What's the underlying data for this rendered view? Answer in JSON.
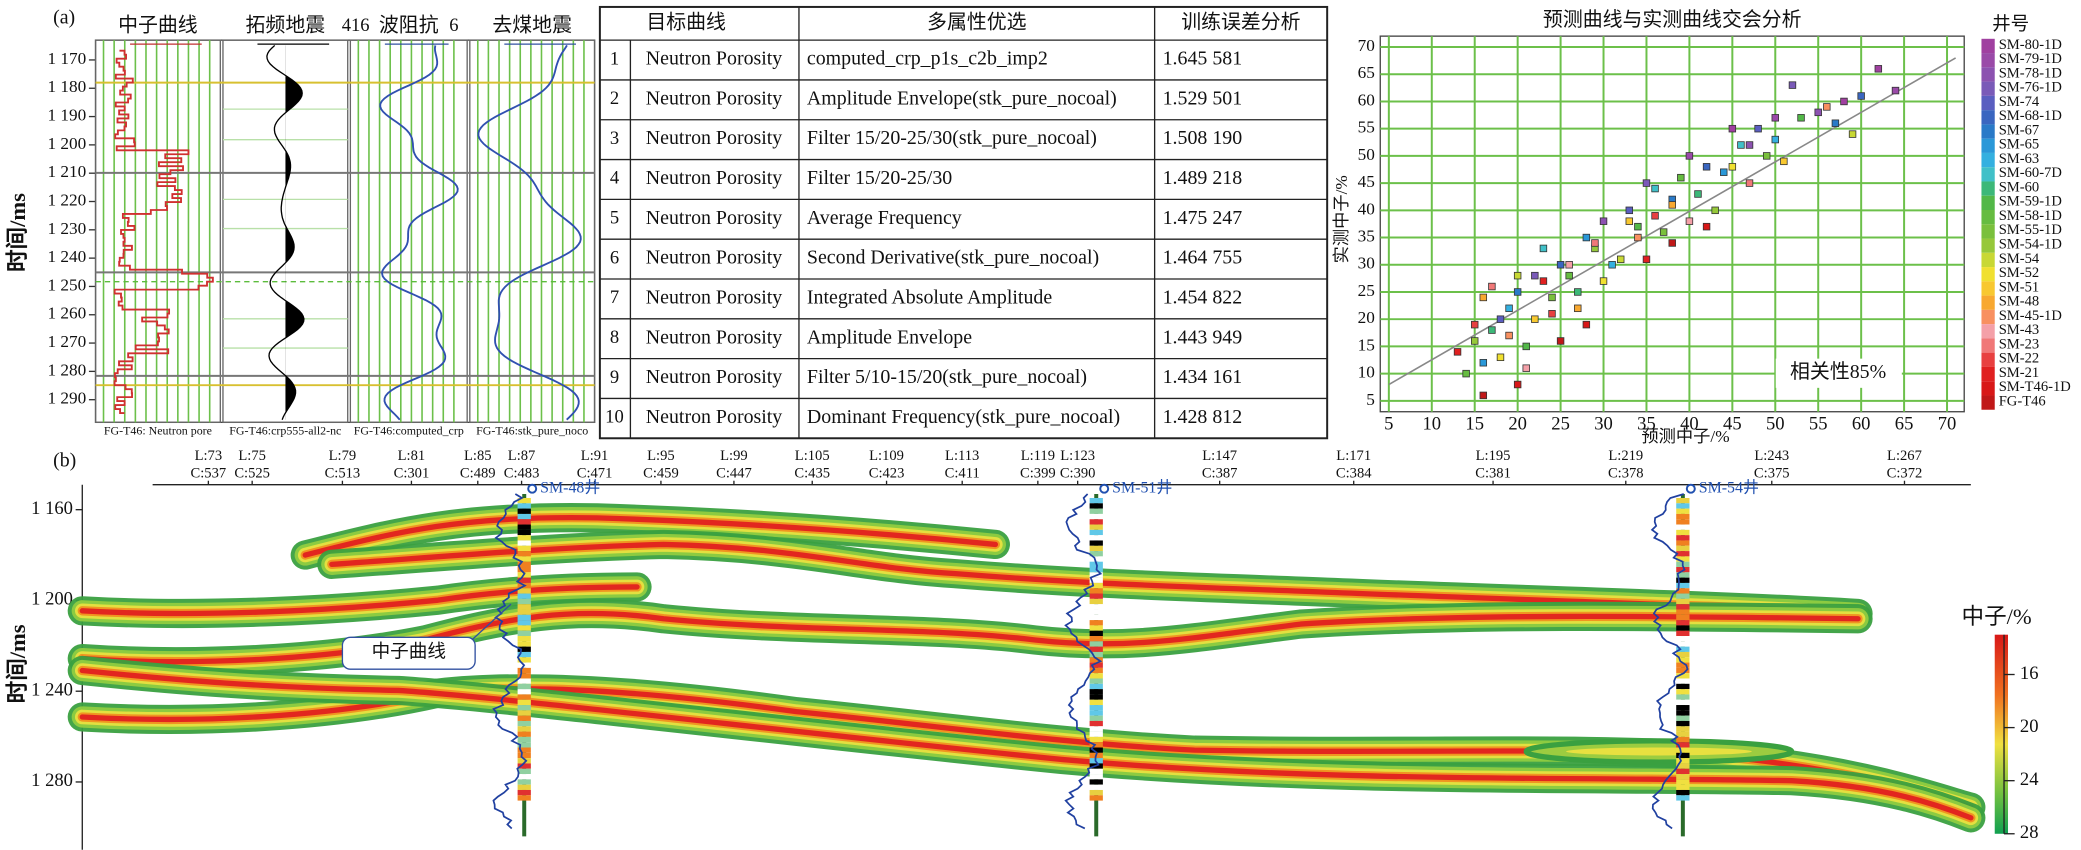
{
  "panel_a": {
    "label": "(a)",
    "logs": {
      "y_label": "时间/ms",
      "ylim": [
        1163,
        1298
      ],
      "yticks": [
        {
          "value": 1170,
          "label": "1 170"
        },
        {
          "value": 1180,
          "label": "1 180"
        },
        {
          "value": 1190,
          "label": "1 190"
        },
        {
          "value": 1200,
          "label": "1 200"
        },
        {
          "value": 1210,
          "label": "1 210"
        },
        {
          "value": 1220,
          "label": "1 220"
        },
        {
          "value": 1230,
          "label": "1 230"
        },
        {
          "value": 1240,
          "label": "1 240"
        },
        {
          "value": 1250,
          "label": "1 250"
        },
        {
          "value": 1260,
          "label": "1 260"
        },
        {
          "value": 1270,
          "label": "1 270"
        },
        {
          "value": 1280,
          "label": "1 280"
        },
        {
          "value": 1290,
          "label": "1 290"
        }
      ],
      "tracks": [
        {
          "title": "中子曲线",
          "footer": "FG-T46: Neutron pore"
        },
        {
          "title": "拓频地震",
          "footer": "FG-T46:crp555-all2-nc"
        },
        {
          "title": "波阻抗",
          "range_left": "416",
          "range_right": "6",
          "footer": "FG-T46:computed_crp"
        },
        {
          "title": "去煤地震",
          "footer": "FG-T46:stk_pure_noco"
        }
      ]
    },
    "table": {
      "header": [
        "目标曲线",
        "多属性优选",
        "训练误差分析"
      ],
      "rows": [
        [
          "1",
          "Neutron Porosity",
          "computed_crp_p1s_c2b_imp2",
          "1.645 581"
        ],
        [
          "2",
          "Neutron Porosity",
          "Amplitude Envelope(stk_pure_nocoal)",
          "1.529 501"
        ],
        [
          "3",
          "Neutron Porosity",
          "Filter 15/20-25/30(stk_pure_nocoal)",
          "1.508 190"
        ],
        [
          "4",
          "Neutron Porosity",
          "Filter 15/20-25/30",
          "1.489 218"
        ],
        [
          "5",
          "Neutron Porosity",
          "Average Frequency",
          "1.475 247"
        ],
        [
          "6",
          "Neutron Porosity",
          "Second Derivative(stk_pure_nocoal)",
          "1.464 755"
        ],
        [
          "7",
          "Neutron Porosity",
          "Integrated Absolute Amplitude",
          "1.454 822"
        ],
        [
          "8",
          "Neutron Porosity",
          "Amplitude Envelope",
          "1.443 949"
        ],
        [
          "9",
          "Neutron Porosity",
          "Filter 5/10-15/20(stk_pure_nocoal)",
          "1.434 161"
        ],
        [
          "10",
          "Neutron Porosity",
          "Dominant Frequency(stk_pure_nocoal)",
          "1.428 812"
        ]
      ]
    }
  },
  "chart_data": {
    "type": "scatter",
    "title": "预测曲线与实测曲线交会分析",
    "x_label": "预测中子/%",
    "y_label": "实测中子/%",
    "annotation": "相关性85%",
    "legend_title": "井号",
    "xlim": [
      4,
      72
    ],
    "ylim": [
      3,
      72
    ],
    "xticks": [
      5,
      10,
      15,
      20,
      25,
      30,
      35,
      40,
      45,
      50,
      55,
      60,
      65,
      70
    ],
    "yticks": [
      5,
      10,
      15,
      20,
      25,
      30,
      35,
      40,
      45,
      50,
      55,
      60,
      65,
      70
    ],
    "grid": true,
    "fit_line": {
      "x": [
        5,
        71
      ],
      "values": [
        8,
        68
      ]
    },
    "series": [
      {
        "name": "SM-80-1D",
        "color": "#a040a0",
        "x": [
          45,
          58,
          62
        ],
        "values": [
          55,
          60,
          66
        ]
      },
      {
        "name": "SM-79-1D",
        "color": "#9a4aa8",
        "x": [
          40,
          50,
          64
        ],
        "values": [
          50,
          57,
          62
        ]
      },
      {
        "name": "SM-78-1D",
        "color": "#8c52b0",
        "x": [
          30,
          47,
          55
        ],
        "values": [
          38,
          52,
          58
        ]
      },
      {
        "name": "SM-76-1D",
        "color": "#7a5ab8",
        "x": [
          22,
          35,
          52
        ],
        "values": [
          28,
          45,
          63
        ]
      },
      {
        "name": "SM-74",
        "color": "#5a5ec0",
        "x": [
          18,
          33,
          48
        ],
        "values": [
          20,
          40,
          55
        ]
      },
      {
        "name": "SM-68-1D",
        "color": "#3a66c0",
        "x": [
          25,
          42,
          60
        ],
        "values": [
          30,
          48,
          61
        ]
      },
      {
        "name": "SM-67",
        "color": "#2a7ac8",
        "x": [
          20,
          38,
          57
        ],
        "values": [
          25,
          42,
          56
        ]
      },
      {
        "name": "SM-65",
        "color": "#2a98d8",
        "x": [
          16,
          28,
          44
        ],
        "values": [
          12,
          35,
          47
        ]
      },
      {
        "name": "SM-63",
        "color": "#34b0e0",
        "x": [
          19,
          31,
          50
        ],
        "values": [
          22,
          30,
          53
        ]
      },
      {
        "name": "SM-60-7D",
        "color": "#40c0c8",
        "x": [
          23,
          36,
          46
        ],
        "values": [
          33,
          44,
          52
        ]
      },
      {
        "name": "SM-60",
        "color": "#3cb878",
        "x": [
          17,
          27,
          41
        ],
        "values": [
          18,
          25,
          43
        ]
      },
      {
        "name": "SM-59-1D",
        "color": "#52b848",
        "x": [
          21,
          34,
          53
        ],
        "values": [
          15,
          37,
          57
        ]
      },
      {
        "name": "SM-58-1D",
        "color": "#66bc40",
        "x": [
          14,
          26,
          39
        ],
        "values": [
          10,
          28,
          46
        ]
      },
      {
        "name": "SM-55-1D",
        "color": "#7ac03c",
        "x": [
          24,
          37,
          49
        ],
        "values": [
          24,
          36,
          50
        ]
      },
      {
        "name": "SM-54-1D",
        "color": "#96c83a",
        "x": [
          15,
          29,
          43
        ],
        "values": [
          16,
          33,
          40
        ]
      },
      {
        "name": "SM-54",
        "color": "#c8d834",
        "x": [
          20,
          32,
          59
        ],
        "values": [
          28,
          31,
          54
        ]
      },
      {
        "name": "SM-52",
        "color": "#f0e030",
        "x": [
          18,
          30,
          45
        ],
        "values": [
          13,
          27,
          48
        ]
      },
      {
        "name": "SM-51",
        "color": "#f8c830",
        "x": [
          22,
          33,
          51
        ],
        "values": [
          20,
          38,
          49
        ]
      },
      {
        "name": "SM-48",
        "color": "#f8a830",
        "x": [
          16,
          27,
          38
        ],
        "values": [
          24,
          22,
          41
        ]
      },
      {
        "name": "SM-45-1D",
        "color": "#f89060",
        "x": [
          19,
          34,
          56
        ],
        "values": [
          17,
          35,
          59
        ]
      },
      {
        "name": "SM-43",
        "color": "#f4a0a8",
        "x": [
          21,
          26,
          40
        ],
        "values": [
          11,
          30,
          38
        ]
      },
      {
        "name": "SM-23",
        "color": "#f07878",
        "x": [
          17,
          29,
          47
        ],
        "values": [
          26,
          34,
          45
        ]
      },
      {
        "name": "SM-22",
        "color": "#e84040",
        "x": [
          15,
          24,
          36
        ],
        "values": [
          19,
          21,
          39
        ]
      },
      {
        "name": "SM-21",
        "color": "#e02020",
        "x": [
          13,
          23,
          35
        ],
        "values": [
          14,
          27,
          31
        ]
      },
      {
        "name": "SM-T46-1D",
        "color": "#d81818",
        "x": [
          20,
          28,
          42
        ],
        "values": [
          8,
          19,
          37
        ]
      },
      {
        "name": "FG-T46",
        "color": "#c01818",
        "x": [
          16,
          25,
          38
        ],
        "values": [
          6,
          16,
          34
        ]
      }
    ]
  },
  "panel_b": {
    "label": "(b)",
    "y_label": "时间/ms",
    "ylim": [
      1149,
      1304
    ],
    "yticks": [
      {
        "value": 1160,
        "label": "1 160"
      },
      {
        "value": 1200,
        "label": "1 200"
      },
      {
        "value": 1240,
        "label": "1 240"
      },
      {
        "value": 1280,
        "label": "1 280"
      }
    ],
    "trace_labels": [
      {
        "L": "L:73",
        "C": "C:537"
      },
      {
        "L": "L:75",
        "C": "C:525"
      },
      {
        "L": "L:79",
        "C": "C:513"
      },
      {
        "L": "L:81",
        "C": "C:301"
      },
      {
        "L": "L:85",
        "C": "C:489"
      },
      {
        "L": "L:87",
        "C": "C:483"
      },
      {
        "L": "L:91",
        "C": "C:471"
      },
      {
        "L": "L:95",
        "C": "C:459"
      },
      {
        "L": "L:99",
        "C": "C:447"
      },
      {
        "L": "L:105",
        "C": "C:435"
      },
      {
        "L": "L:109",
        "C": "C:423"
      },
      {
        "L": "L:113",
        "C": "C:411"
      },
      {
        "L": "L:119",
        "C": "C:399"
      },
      {
        "L": "L:123",
        "C": "C:390"
      },
      {
        "L": "L:147",
        "C": "C:387"
      },
      {
        "L": "L:171",
        "C": "C:384"
      },
      {
        "L": "L:195",
        "C": "C:381"
      },
      {
        "L": "L:219",
        "C": "C:378"
      },
      {
        "L": "L:243",
        "C": "C:375"
      },
      {
        "L": "L:267",
        "C": "C:372"
      }
    ],
    "wells": [
      "SM-48井",
      "SM-51井",
      "SM-54井"
    ],
    "annotation": "中子曲线",
    "colorbar": {
      "title": "中子/%",
      "range": [
        13,
        28
      ],
      "ticks": [
        16,
        20,
        24,
        28
      ]
    }
  }
}
